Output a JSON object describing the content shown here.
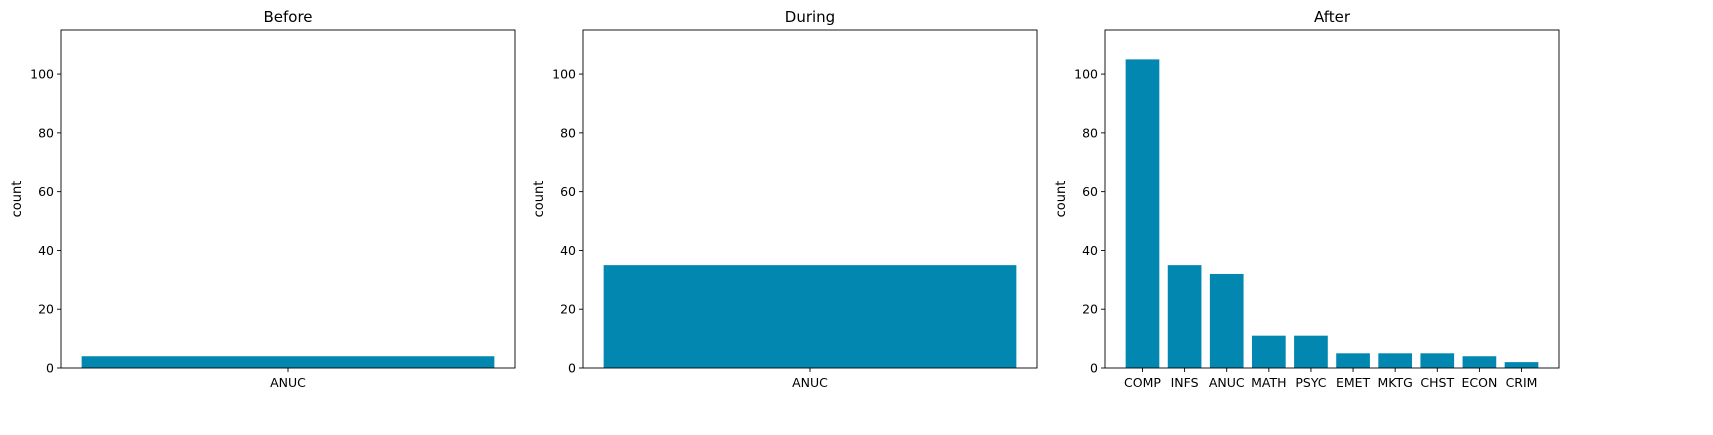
{
  "chart_data": [
    {
      "type": "bar",
      "title": "Before",
      "xlabel": "",
      "ylabel": "count",
      "categories": [
        "ANUC"
      ],
      "values": [
        4
      ],
      "ylim": [
        0,
        115
      ],
      "yticks": [
        0,
        20,
        40,
        60,
        80,
        100
      ],
      "color": "#0288b0",
      "grid": false
    },
    {
      "type": "bar",
      "title": "During",
      "xlabel": "",
      "ylabel": "count",
      "categories": [
        "ANUC"
      ],
      "values": [
        35
      ],
      "ylim": [
        0,
        115
      ],
      "yticks": [
        0,
        20,
        40,
        60,
        80,
        100
      ],
      "color": "#0288b0",
      "grid": false
    },
    {
      "type": "bar",
      "title": "After",
      "xlabel": "",
      "ylabel": "count",
      "categories": [
        "COMP",
        "INFS",
        "ANUC",
        "MATH",
        "PSYC",
        "EMET",
        "MKTG",
        "CHST",
        "ECON",
        "CRIM"
      ],
      "values": [
        105,
        35,
        32,
        11,
        11,
        5,
        5,
        5,
        4,
        2
      ],
      "ylim": [
        0,
        115
      ],
      "yticks": [
        0,
        20,
        40,
        60,
        80,
        100
      ],
      "color": "#0288b0",
      "grid": false
    }
  ]
}
